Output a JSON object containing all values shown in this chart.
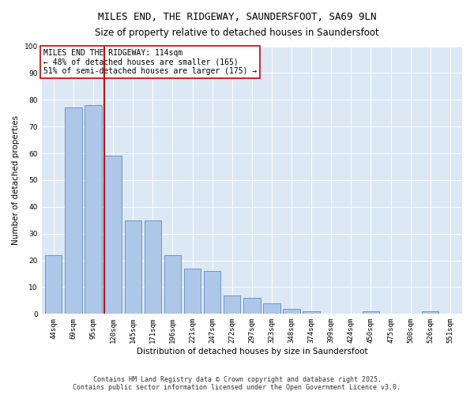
{
  "title": "MILES END, THE RIDGEWAY, SAUNDERSFOOT, SA69 9LN",
  "subtitle": "Size of property relative to detached houses in Saundersfoot",
  "xlabel": "Distribution of detached houses by size in Saundersfoot",
  "ylabel": "Number of detached properties",
  "categories": [
    "44sqm",
    "69sqm",
    "95sqm",
    "120sqm",
    "145sqm",
    "171sqm",
    "196sqm",
    "221sqm",
    "247sqm",
    "272sqm",
    "297sqm",
    "323sqm",
    "348sqm",
    "374sqm",
    "399sqm",
    "424sqm",
    "450sqm",
    "475sqm",
    "500sqm",
    "526sqm",
    "551sqm"
  ],
  "values": [
    22,
    77,
    78,
    59,
    35,
    35,
    22,
    17,
    16,
    7,
    6,
    4,
    2,
    1,
    0,
    0,
    1,
    0,
    0,
    1,
    0
  ],
  "bar_color": "#aec6e8",
  "bar_edge_color": "#5a8fc0",
  "vline_index": 3,
  "vline_color": "#cc0000",
  "annotation_text": "MILES END THE RIDGEWAY: 114sqm\n← 48% of detached houses are smaller (165)\n51% of semi-detached houses are larger (175) →",
  "annotation_box_color": "#ffffff",
  "annotation_box_edge_color": "#cc0000",
  "ylim": [
    0,
    100
  ],
  "yticks": [
    0,
    10,
    20,
    30,
    40,
    50,
    60,
    70,
    80,
    90,
    100
  ],
  "background_color": "#dde8f5",
  "footer_text": "Contains HM Land Registry data © Crown copyright and database right 2025.\nContains public sector information licensed under the Open Government Licence v3.0.",
  "title_fontsize": 9,
  "subtitle_fontsize": 8.5,
  "axis_label_fontsize": 7.5,
  "tick_fontsize": 6.5,
  "annotation_fontsize": 7,
  "footer_fontsize": 6
}
